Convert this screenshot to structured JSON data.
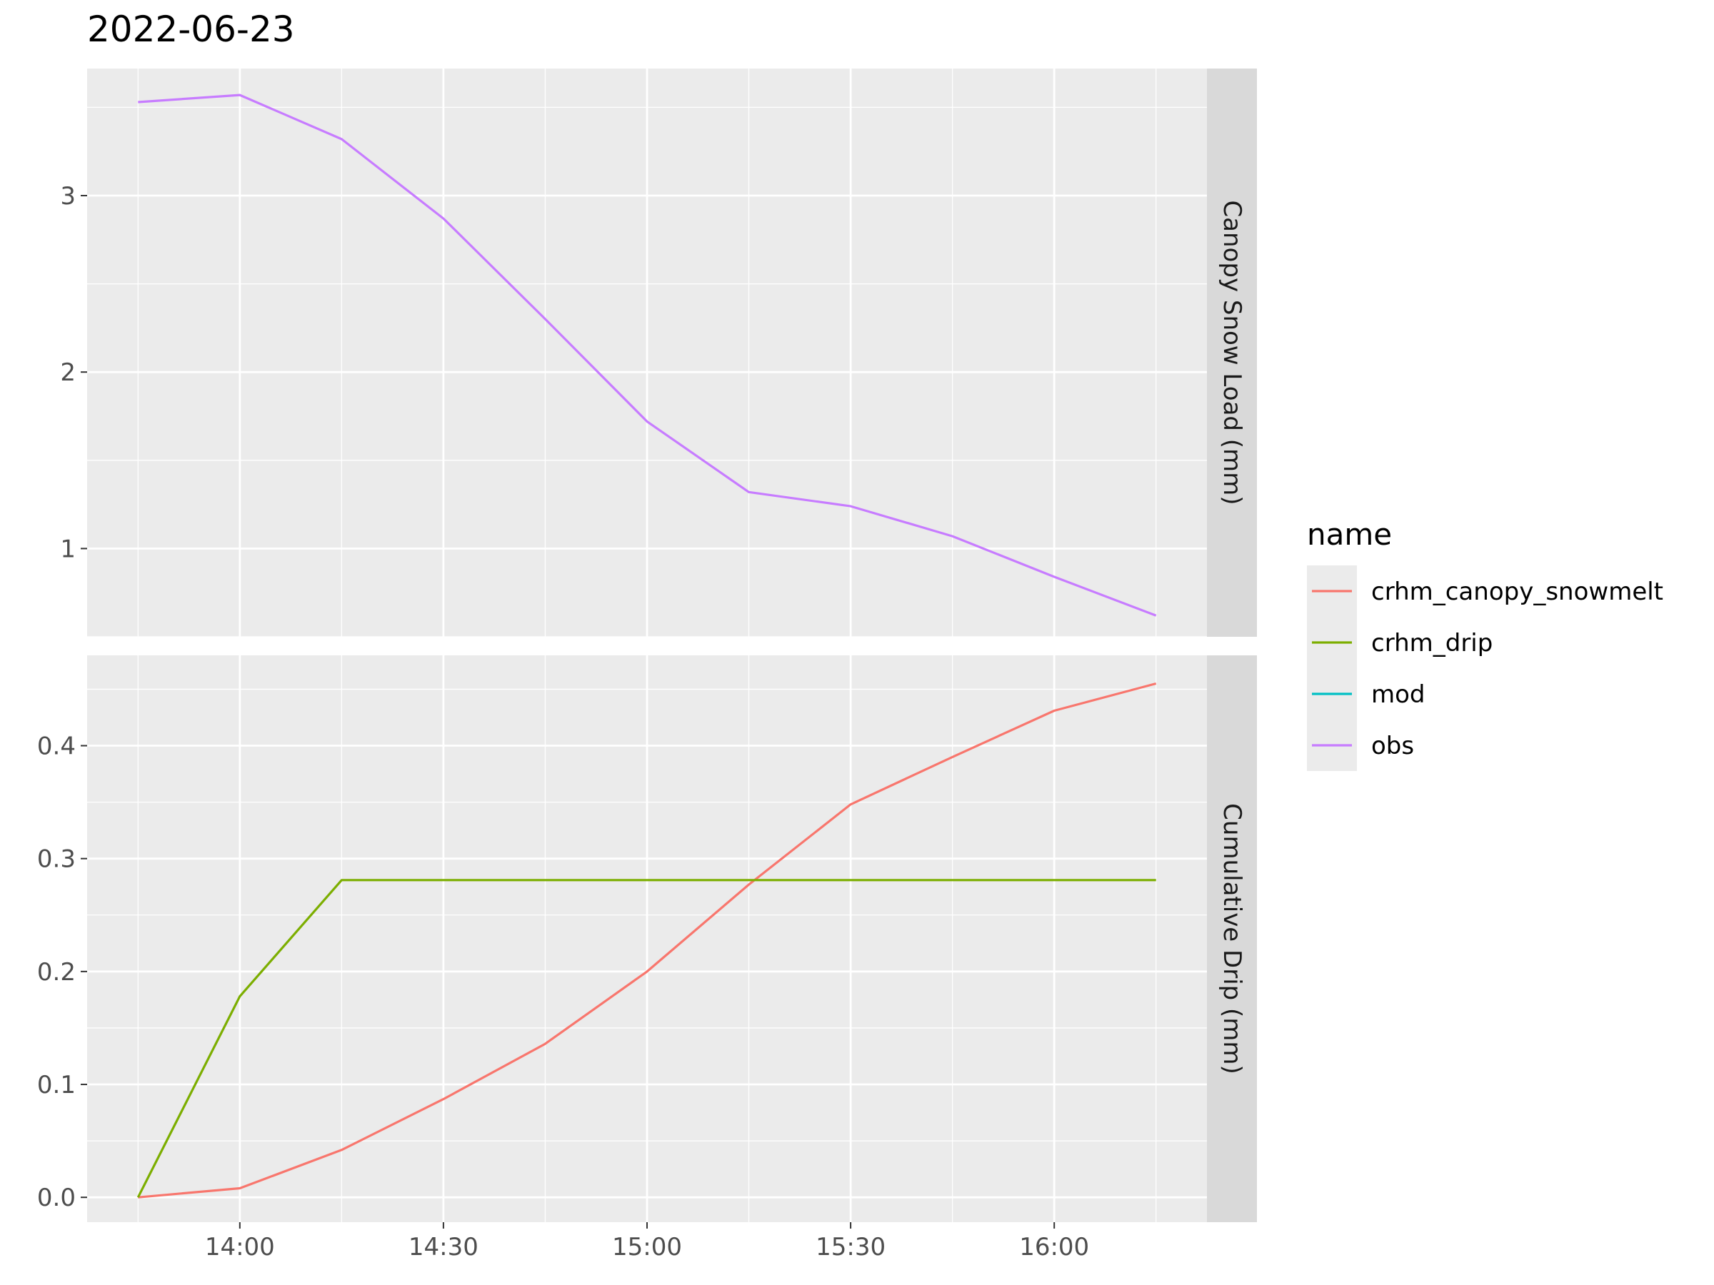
{
  "chart_data": {
    "type": "line",
    "title": "2022-06-23",
    "x": [
      "13:45",
      "14:00",
      "14:15",
      "14:30",
      "14:45",
      "15:00",
      "15:15",
      "15:30",
      "15:45",
      "16:00",
      "16:15"
    ],
    "x_ticks": [
      "14:00",
      "14:30",
      "15:00",
      "15:30",
      "16:00"
    ],
    "legend": {
      "title": "name",
      "placement": "right",
      "entries": [
        "crhm_canopy_snowmelt",
        "crhm_drip",
        "mod",
        "obs"
      ]
    },
    "colors": {
      "crhm_canopy_snowmelt": "#F8766D",
      "crhm_drip": "#7CAE00",
      "mod": "#00BFC4",
      "obs": "#C77CFF"
    },
    "grid": true,
    "panels": [
      {
        "strip_label": "Canopy Snow Load (mm)",
        "ylim": [
          0.5,
          3.72
        ],
        "y_ticks": [
          "1",
          "2",
          "3"
        ],
        "series": [
          {
            "name": "obs",
            "values": [
              3.53,
              3.57,
              3.32,
              2.87,
              2.3,
              1.72,
              1.32,
              1.24,
              1.07,
              0.84,
              0.62
            ]
          }
        ]
      },
      {
        "strip_label": "Cumulative Drip (mm)",
        "ylim": [
          -0.022,
          0.48
        ],
        "y_ticks": [
          "0.0",
          "0.1",
          "0.2",
          "0.3",
          "0.4"
        ],
        "series": [
          {
            "name": "crhm_canopy_snowmelt",
            "values": [
              0.0,
              0.008,
              0.042,
              0.087,
              0.136,
              0.2,
              0.277,
              0.348,
              0.39,
              0.431,
              0.455
            ]
          },
          {
            "name": "crhm_drip",
            "values": [
              0.0,
              0.178,
              0.281,
              0.281,
              0.281,
              0.281,
              0.281,
              0.281,
              0.281,
              0.281,
              0.281
            ]
          }
        ]
      }
    ]
  }
}
